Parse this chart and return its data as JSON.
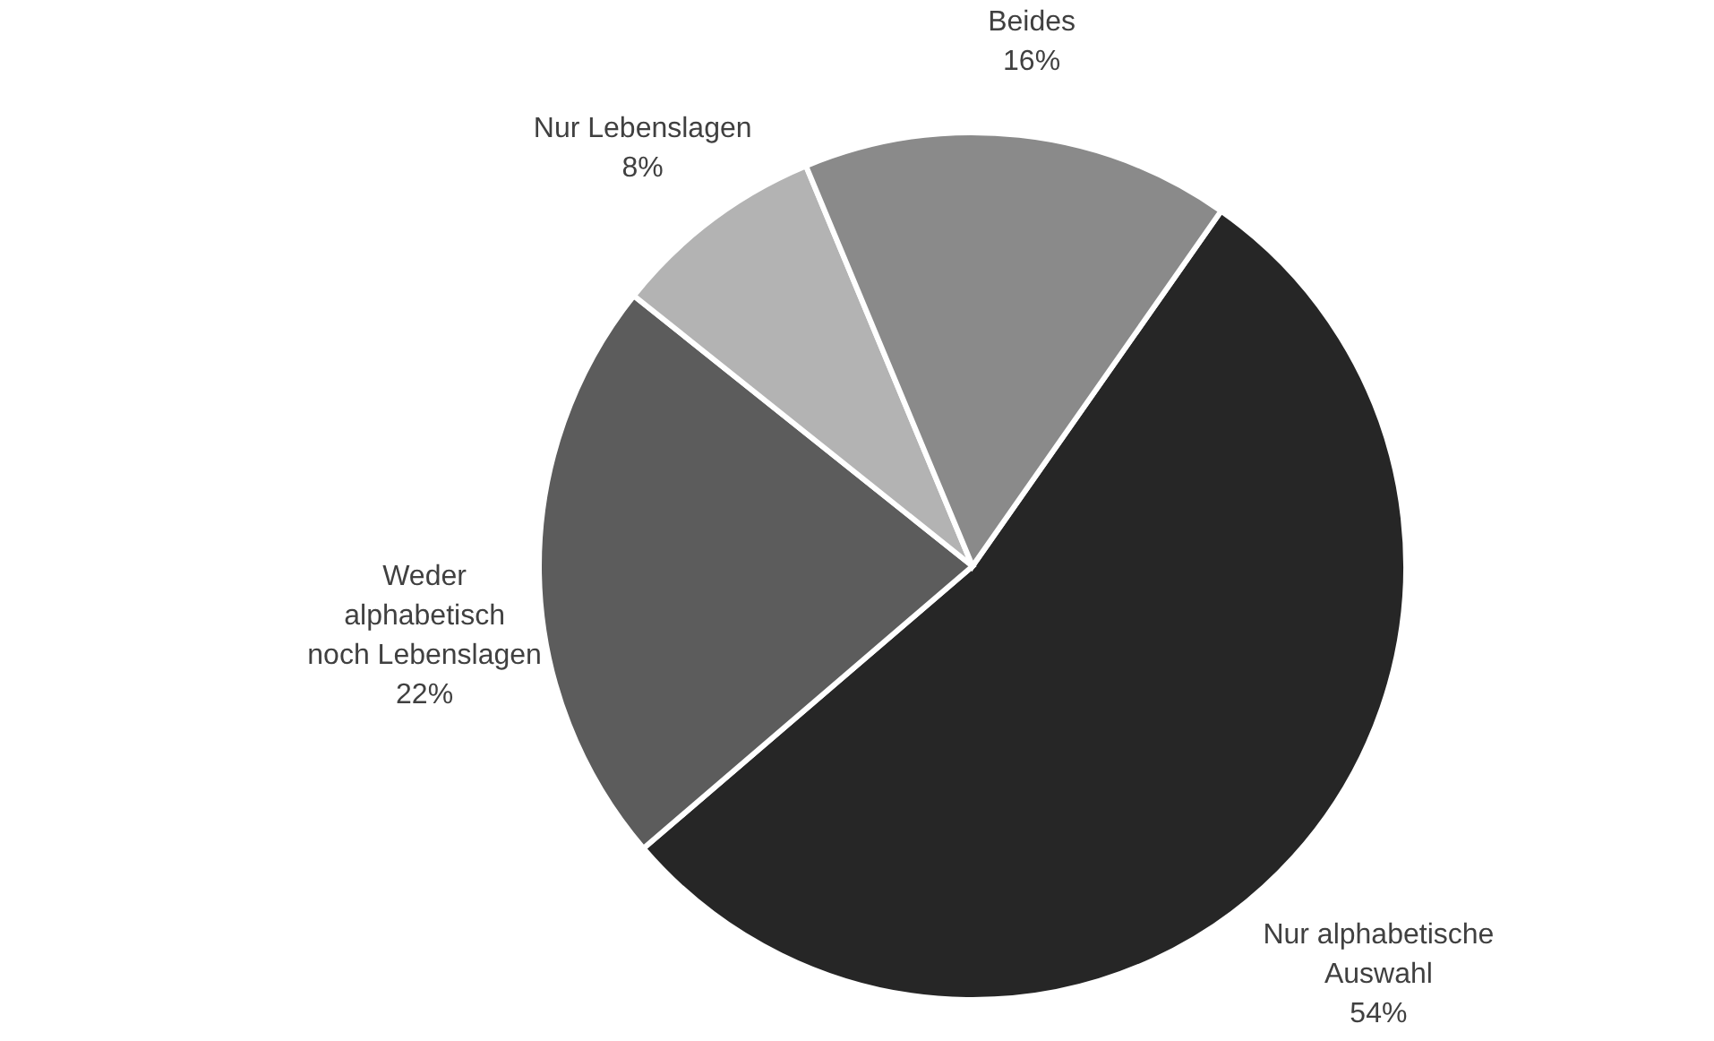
{
  "chart_data": {
    "type": "pie",
    "categories": [
      "Nur alphabetische\nAuswahl",
      "Weder\nalphabetisch\nnoch Lebenslagen",
      "Nur Lebenslagen",
      "Beides"
    ],
    "values": [
      54,
      22,
      8,
      16
    ],
    "value_labels": [
      "54%",
      "22%",
      "8%",
      "16%"
    ],
    "colors": [
      "#262626",
      "#5c5c5c",
      "#b3b3b3",
      "#8a8a8a"
    ]
  }
}
